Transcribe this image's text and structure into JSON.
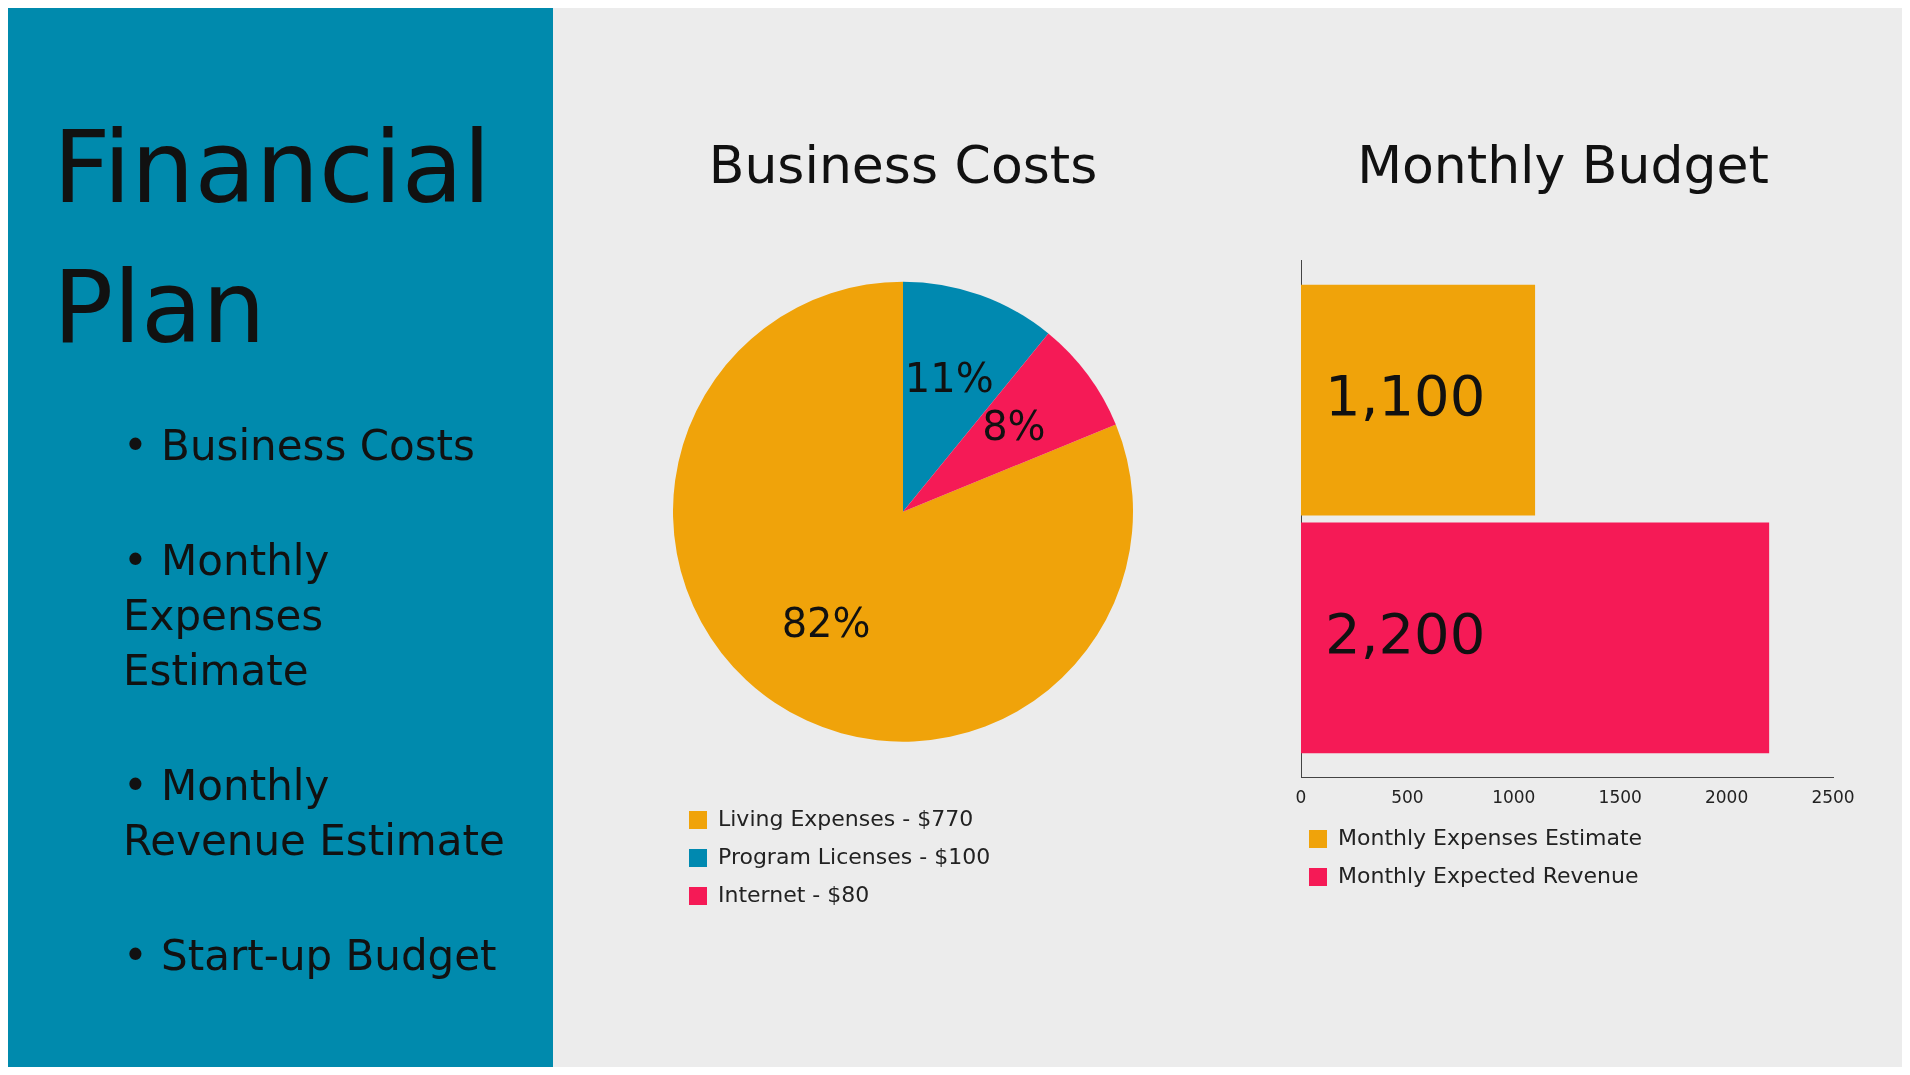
{
  "chart_data": [
    {
      "type": "other",
      "title": "Financial Plan",
      "annotations": [
        "• Business Costs",
        "• Monthly Expenses Estimate",
        "• Monthly Revenue Estimate",
        "• Start-up Budget"
      ]
    },
    {
      "type": "pie",
      "title": "Business Costs",
      "categories": [
        "Living Expenses - $770",
        "Program Licenses - $100",
        "Internet - $80"
      ],
      "values": [
        82,
        11,
        8
      ],
      "colors": [
        "#f0a30a",
        "#0089b0",
        "#f51a56"
      ],
      "value_labels": [
        "82%",
        "11%",
        "8%"
      ],
      "legend": "bottom"
    },
    {
      "type": "bar",
      "orientation": "horizontal",
      "title": "Monthly Budget",
      "categories": [
        null
      ],
      "series": [
        {
          "name": "Monthly Expenses Estimate",
          "color": "#f0a30a",
          "values": [
            1100
          ],
          "value_labels": [
            "1,100"
          ]
        },
        {
          "name": "Monthly Expected Revenue",
          "color": "#f51a56",
          "values": [
            2200
          ],
          "value_labels": [
            "2,200"
          ]
        }
      ],
      "xlim": [
        0,
        2500
      ],
      "xticks": [
        0,
        500,
        1000,
        1500,
        2000,
        2500
      ],
      "tick_labels": "x",
      "grid": false,
      "legend": "bottom"
    }
  ]
}
